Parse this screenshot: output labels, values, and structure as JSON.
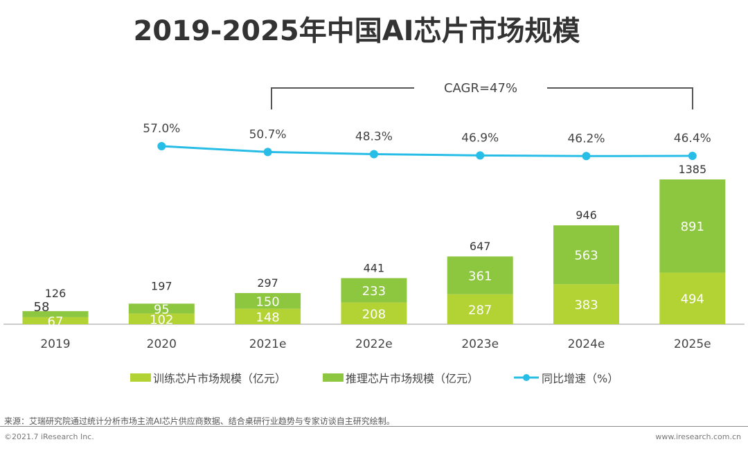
{
  "chart_data": {
    "type": "bar",
    "stacked": true,
    "title": "2019-2025年中国AI芯片市场规模",
    "categories": [
      "2019",
      "2020",
      "2021e",
      "2022e",
      "2023e",
      "2024e",
      "2025e"
    ],
    "series": [
      {
        "name": "训练芯片市场规模（亿元）",
        "type": "bar",
        "color": "#b3d335",
        "values": [
          67,
          102,
          148,
          208,
          287,
          383,
          494
        ]
      },
      {
        "name": "推理芯片市场规模（亿元）",
        "type": "bar",
        "color": "#8dc63f",
        "values": [
          58,
          95,
          150,
          233,
          361,
          563,
          891
        ]
      },
      {
        "name": "同比增速（%）",
        "type": "line",
        "color": "#27bde6",
        "x": [
          "2020",
          "2021e",
          "2022e",
          "2023e",
          "2024e",
          "2025e"
        ],
        "values": [
          57.0,
          50.7,
          48.3,
          46.9,
          46.2,
          46.4
        ]
      }
    ],
    "totals": [
      126,
      197,
      297,
      441,
      647,
      946,
      1385
    ],
    "annotation": "CAGR=47%",
    "legend_position": "bottom",
    "grid": false
  },
  "footer": {
    "source": "来源：艾瑞研究院通过统计分析市场主流AI芯片供应商数据、结合桌研行业趋势与专家访谈自主研究绘制。",
    "copyright": "©2021.7 iResearch Inc.",
    "website": "www.iresearch.com.cn"
  }
}
